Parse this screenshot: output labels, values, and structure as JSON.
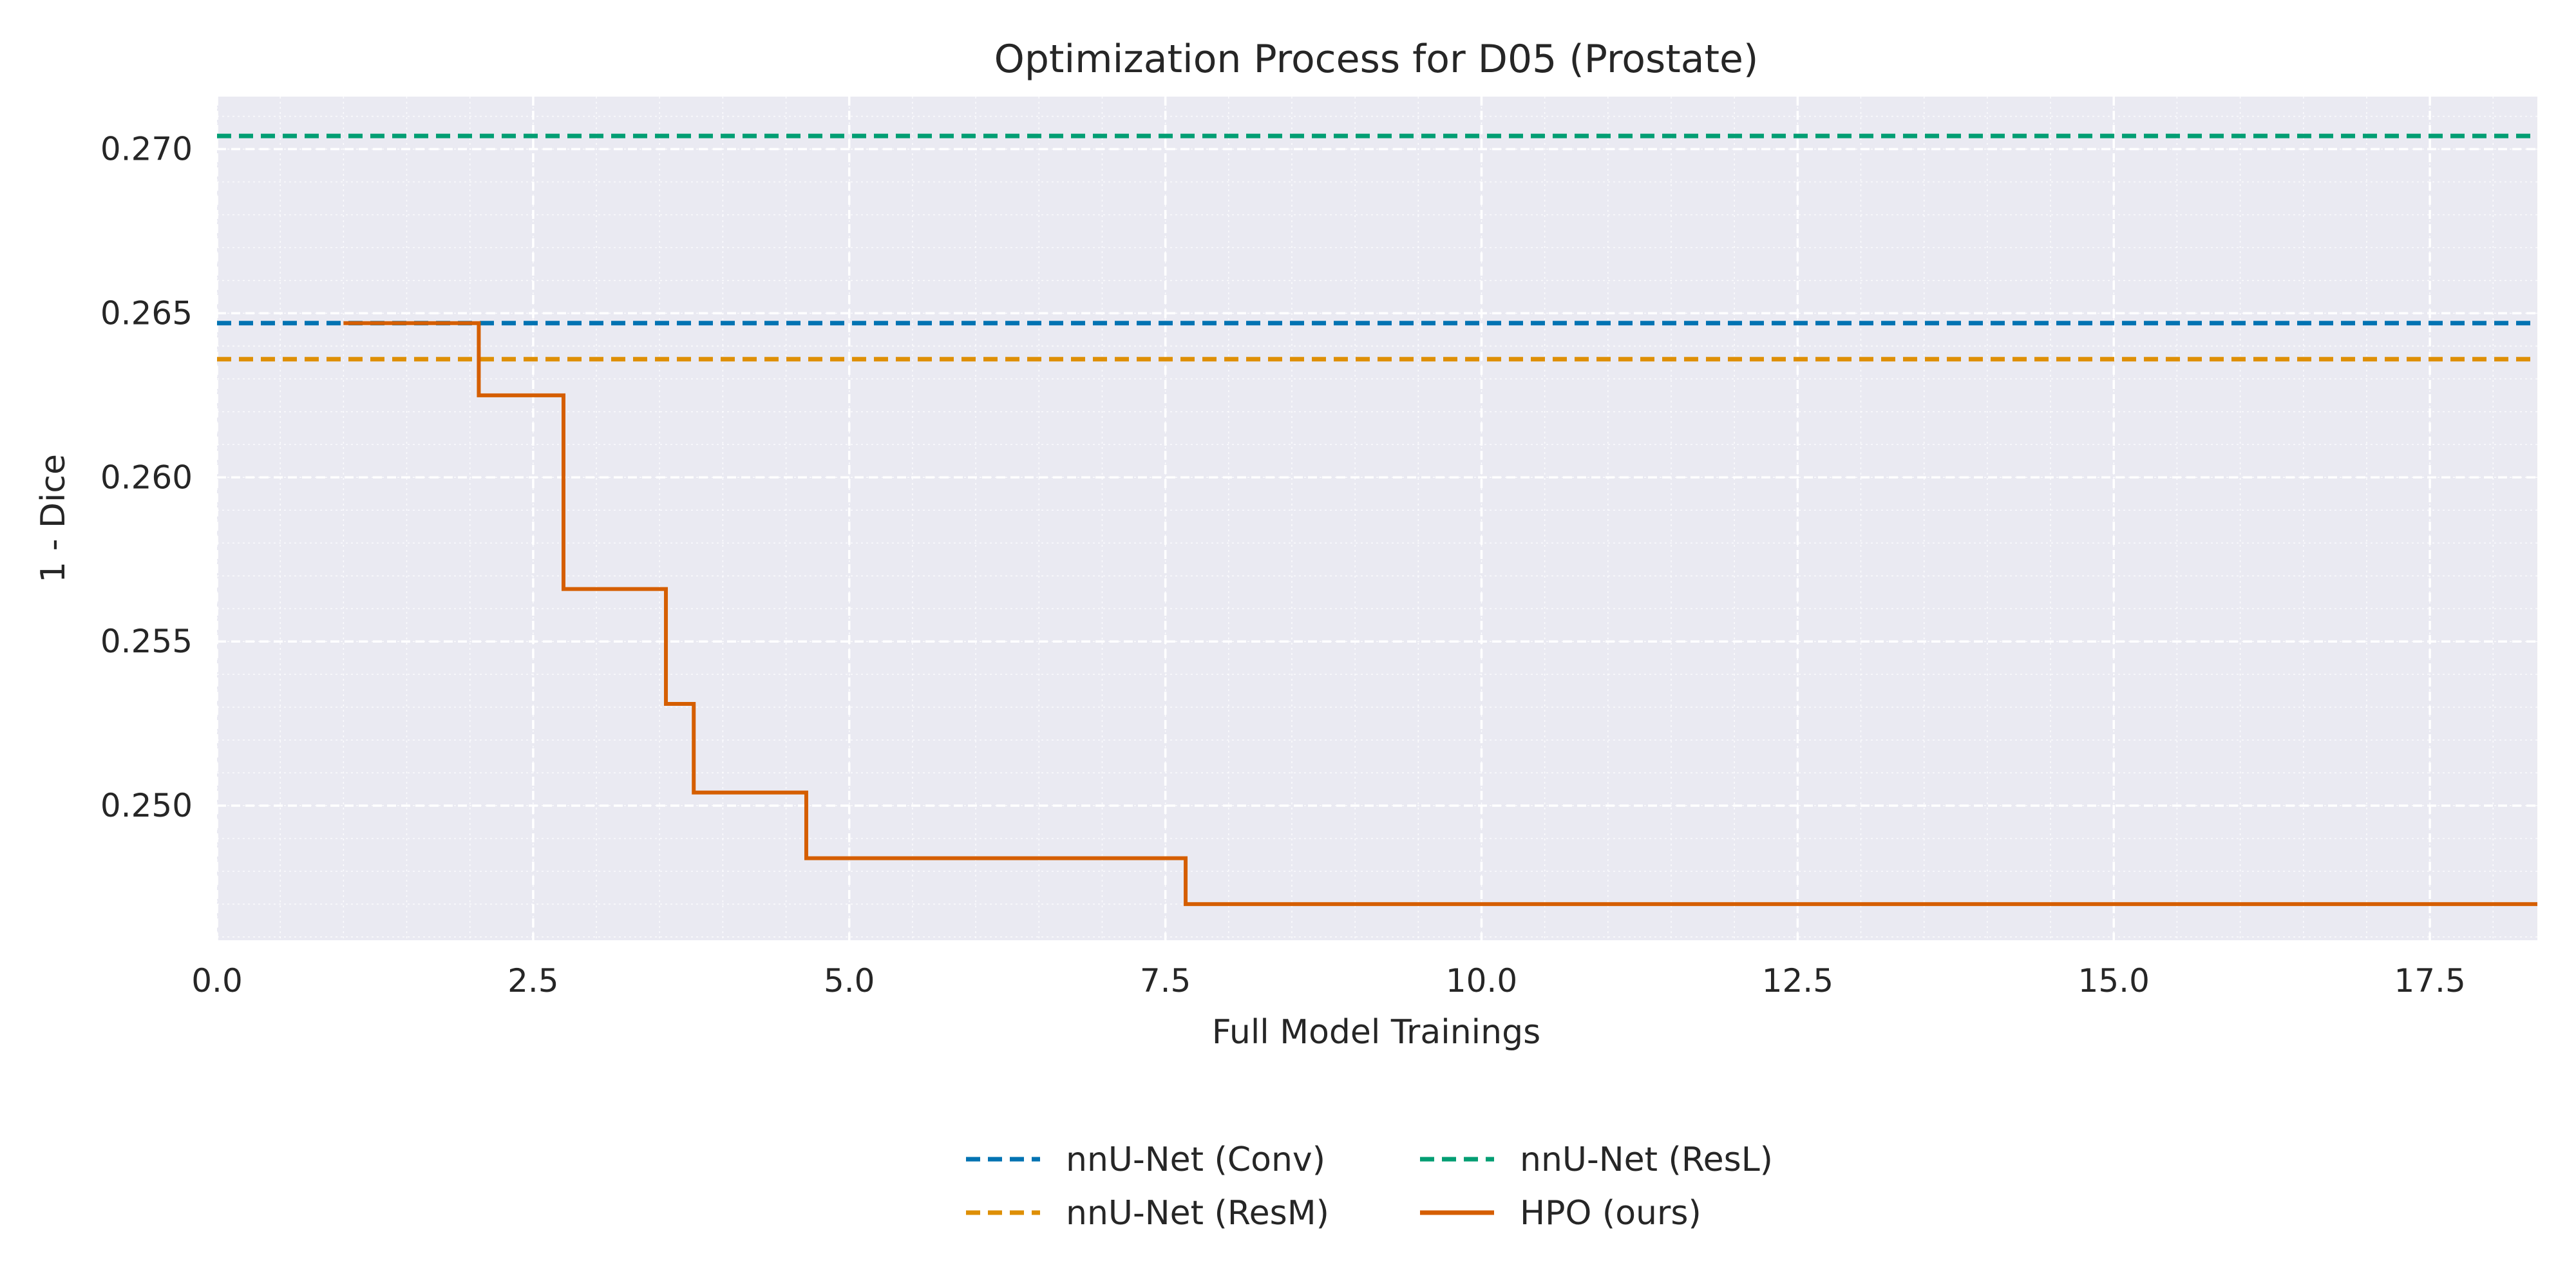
{
  "chart_data": {
    "type": "line",
    "title": "Optimization Process for D05 (Prostate)",
    "xlabel": "Full Model Trainings",
    "ylabel": "1 - Dice",
    "xlim": [
      0,
      18.35
    ],
    "ylim": [
      0.2459,
      0.2716
    ],
    "x_ticks": [
      0.0,
      2.5,
      5.0,
      7.5,
      10.0,
      12.5,
      15.0,
      17.5
    ],
    "x_tick_labels": [
      "0.0",
      "2.5",
      "5.0",
      "7.5",
      "10.0",
      "12.5",
      "15.0",
      "17.5"
    ],
    "y_ticks": [
      0.25,
      0.255,
      0.26,
      0.265,
      0.27
    ],
    "y_tick_labels": [
      "0.250",
      "0.255",
      "0.260",
      "0.265",
      "0.270"
    ],
    "grid": true,
    "background_color": "#eaeaf2",
    "legend_position": "bottom-center",
    "series": [
      {
        "name": "nnU-Net (Conv)",
        "style": "dashed",
        "color": "#0173b2",
        "kind": "hline",
        "y": 0.2647
      },
      {
        "name": "nnU-Net (ResM)",
        "style": "dashed",
        "color": "#de8f05",
        "kind": "hline",
        "y": 0.2636
      },
      {
        "name": "nnU-Net (ResL)",
        "style": "dashed",
        "color": "#029e73",
        "kind": "hline",
        "y": 0.2704
      },
      {
        "name": "HPO (ours)",
        "style": "solid",
        "color": "#d55e00",
        "kind": "step",
        "x": [
          1.0,
          2.07,
          2.74,
          3.55,
          3.77,
          4.66,
          7.66,
          18.35
        ],
        "y": [
          0.2647,
          0.2625,
          0.2566,
          0.2531,
          0.2504,
          0.2484,
          0.247,
          0.247
        ]
      }
    ]
  }
}
